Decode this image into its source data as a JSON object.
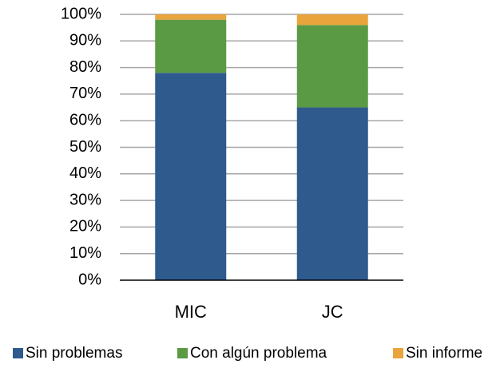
{
  "chart_data": {
    "type": "stacked_bar",
    "categories": [
      "MIC",
      "JC"
    ],
    "series": [
      {
        "name": "Sin problemas",
        "color": "#2E5A8E",
        "values": [
          78,
          65
        ]
      },
      {
        "name": "Con algún problema",
        "color": "#5B9A45",
        "values": [
          20,
          31
        ]
      },
      {
        "name": "Sin informe",
        "color": "#E9A53C",
        "values": [
          2,
          4
        ]
      }
    ],
    "ylim": [
      0,
      100
    ],
    "yticks": [
      {
        "value": 0,
        "label": "0%"
      },
      {
        "value": 10,
        "label": "10%"
      },
      {
        "value": 20,
        "label": "20%"
      },
      {
        "value": 30,
        "label": "30%"
      },
      {
        "value": 40,
        "label": "40%"
      },
      {
        "value": 50,
        "label": "50%"
      },
      {
        "value": 60,
        "label": "60%"
      },
      {
        "value": 70,
        "label": "70%"
      },
      {
        "value": 80,
        "label": "80%"
      },
      {
        "value": 90,
        "label": "90%"
      },
      {
        "value": 100,
        "label": "100%"
      }
    ],
    "grid": true,
    "legend": "bottom"
  }
}
